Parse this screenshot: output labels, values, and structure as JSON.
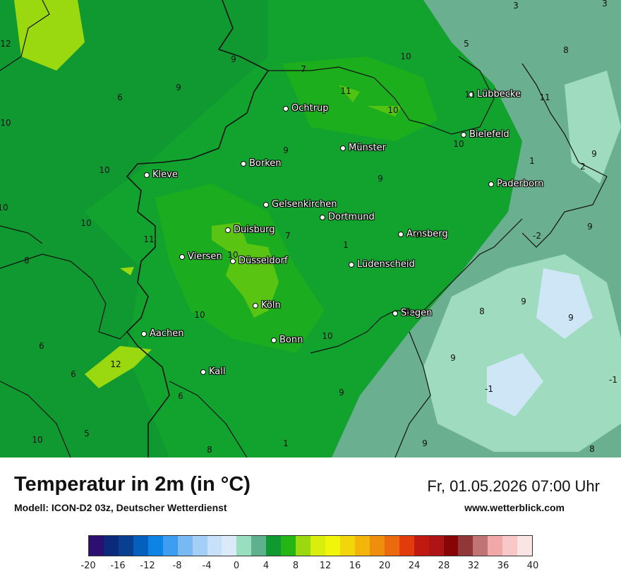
{
  "title": "Temperatur in 2m (in °C)",
  "model": "Modell: ICON-D2 03z, Deutscher Wetterdienst",
  "datetime": "Fr, 01.05.2026 07:00 Uhr",
  "website": "www.wetterblick.com",
  "cities": [
    "Lübbecke",
    "Ochtrup",
    "Bielefeld",
    "Münster",
    "Kleve",
    "Borken",
    "Paderborn",
    "Gelsenkirchen",
    "Dortmund",
    "Duisburg",
    "Arnsberg",
    "Viersen",
    "Düsseldorf",
    "Lüdenscheid",
    "Köln",
    "Siegen",
    "Aachen",
    "Bonn",
    "Kall"
  ],
  "values": [
    "3",
    "3",
    "12",
    "5",
    "8",
    "9",
    "10",
    "7",
    "6",
    "9",
    "11",
    "11",
    "10",
    "11",
    "10",
    "10",
    "9",
    "1",
    "10",
    "9",
    "2",
    "10",
    "9",
    "11",
    "-2",
    "9",
    "7",
    "9",
    "10",
    "1",
    "8",
    "10",
    "9",
    "6",
    "10",
    "9",
    "6",
    "12",
    "8",
    "10",
    "9",
    "-1",
    "6",
    "6",
    "-1",
    "5",
    "10",
    "1",
    "9",
    "9",
    "8",
    "8"
  ],
  "legend": {
    "colors": [
      "#2c0f6e",
      "#0b2a7c",
      "#083f8f",
      "#0560bd",
      "#0b84e6",
      "#3d9df0",
      "#78b9f3",
      "#a3cff7",
      "#c6e1f9",
      "#dbeaf9",
      "#98dfbf",
      "#5fb08e",
      "#0f9930",
      "#25b514",
      "#9ad80f",
      "#d8ef0d",
      "#f1f50c",
      "#f2d50b",
      "#f2b50b",
      "#ee8e0c",
      "#eb6a0f",
      "#e33c0c",
      "#c01a10",
      "#ad1416",
      "#870506",
      "#8f3837",
      "#c07574",
      "#f0a8a8",
      "#f8c8c8",
      "#fbe4e4"
    ],
    "ticks": [
      "-20",
      "-16",
      "-12",
      "-8",
      "-4",
      "0",
      "4",
      "8",
      "12",
      "16",
      "20",
      "24",
      "28",
      "32",
      "36",
      "40"
    ]
  }
}
